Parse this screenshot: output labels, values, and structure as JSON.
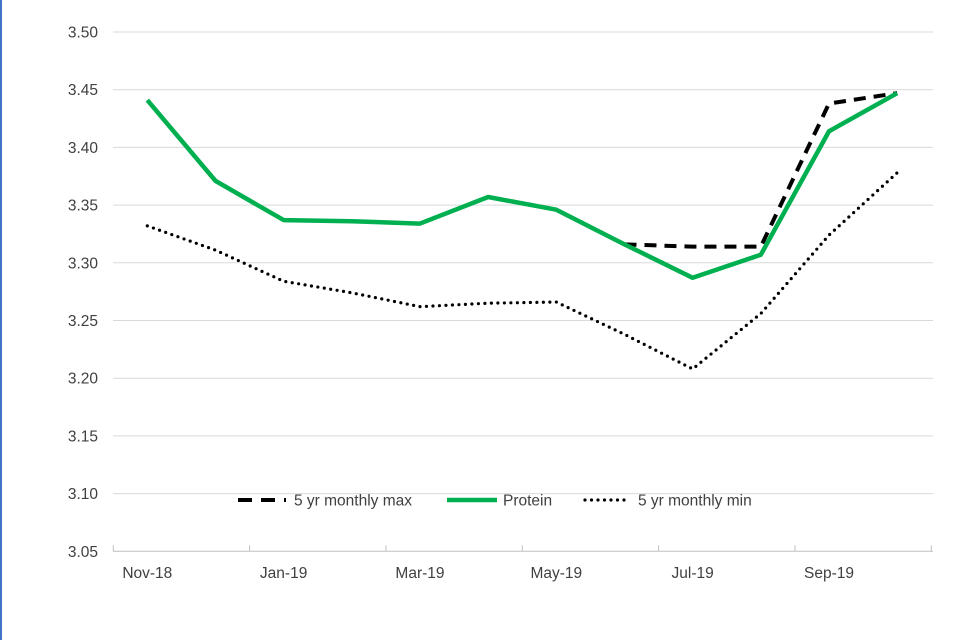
{
  "window": {
    "left_edge_color": "#4472c4",
    "background": "#ffffff"
  },
  "chart_data": {
    "type": "line",
    "title": "",
    "xlabel": "",
    "ylabel": "",
    "categories": [
      "Nov-18",
      "Dec-18",
      "Jan-19",
      "Feb-19",
      "Mar-19",
      "Apr-19",
      "May-19",
      "Jun-19",
      "Jul-19",
      "Aug-19",
      "Sep-19",
      "Oct-19"
    ],
    "x_tick_labels": [
      "Nov-18",
      "Jan-19",
      "Mar-19",
      "May-19",
      "Jul-19",
      "Sep-19"
    ],
    "y_tick_labels": [
      "3.50",
      "3.45",
      "3.40",
      "3.35",
      "3.30",
      "3.25",
      "3.20",
      "3.15",
      "3.10",
      "3.05"
    ],
    "ylim": [
      3.05,
      3.5
    ],
    "ytick_step": 0.05,
    "grid": true,
    "legend_position": "bottom-center",
    "series": [
      {
        "name": "5 yr monthly max",
        "style": "dashed",
        "color": "#000000",
        "values": [
          null,
          null,
          null,
          null,
          null,
          null,
          null,
          3.316,
          3.314,
          3.314,
          3.438,
          3.447
        ]
      },
      {
        "name": "Protein",
        "style": "solid",
        "color": "#00b050",
        "values": [
          3.441,
          3.371,
          3.337,
          3.336,
          3.334,
          3.357,
          3.346,
          3.316,
          3.287,
          3.307,
          3.414,
          3.447
        ]
      },
      {
        "name": "5 yr monthly min",
        "style": "dotted",
        "color": "#000000",
        "values": [
          3.332,
          3.311,
          3.284,
          3.274,
          3.262,
          3.265,
          3.266,
          3.238,
          3.208,
          3.256,
          3.324,
          3.378
        ]
      }
    ]
  },
  "colors": {
    "gridline": "#d9d9d9",
    "axis_line": "#bfbfbf",
    "tick_text": "#404040"
  }
}
